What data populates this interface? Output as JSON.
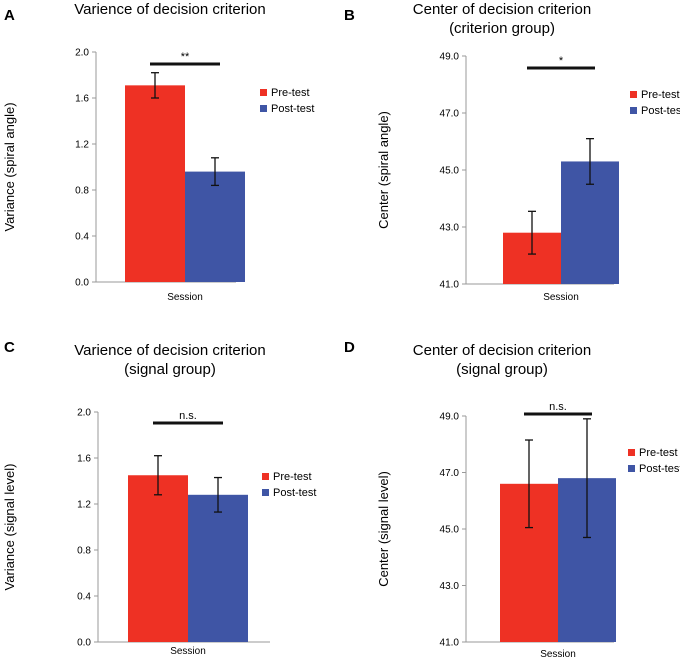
{
  "panels": [
    {
      "id": "a",
      "letter": "A",
      "title_lines": [
        "Varience of decision criterion"
      ],
      "chart_data": {
        "type": "bar",
        "title": "Varience of decision criterion",
        "xlabel": "Session",
        "ylabel": "Variance (spiral angle)",
        "ylim": [
          0,
          2.0
        ],
        "ticks": [
          "0.0",
          "0.4",
          "0.8",
          "1.2",
          "1.6",
          "2.0"
        ],
        "series": [
          {
            "name": "Pre-test",
            "color": "#ee3124",
            "value": 1.71,
            "err": 0.11
          },
          {
            "name": "Post-test",
            "color": "#3f55a5",
            "value": 0.96,
            "err": 0.12
          }
        ],
        "significance": "**"
      }
    },
    {
      "id": "b",
      "letter": "B",
      "title_lines": [
        "Center of decision criterion",
        "(criterion group)"
      ],
      "chart_data": {
        "type": "bar",
        "title": "Center of decision criterion (criterion group)",
        "xlabel": "Session",
        "ylabel": "Center (spiral angle)",
        "ylim": [
          41.0,
          49.0
        ],
        "ticks": [
          "41.0",
          "43.0",
          "45.0",
          "47.0",
          "49.0"
        ],
        "series": [
          {
            "name": "Pre-test",
            "color": "#ee3124",
            "value": 42.8,
            "err": 0.75
          },
          {
            "name": "Post-test",
            "color": "#3f55a5",
            "value": 45.3,
            "err": 0.8
          }
        ],
        "significance": "*"
      }
    },
    {
      "id": "c",
      "letter": "C",
      "title_lines": [
        "Varience of decision criterion",
        "(signal group)"
      ],
      "chart_data": {
        "type": "bar",
        "title": "Varience of decision criterion (signal group)",
        "xlabel": "Session",
        "ylabel": "Variance (signal level)",
        "ylim": [
          0,
          2.0
        ],
        "ticks": [
          "0.0",
          "0.4",
          "0.8",
          "1.2",
          "1.6",
          "2.0"
        ],
        "series": [
          {
            "name": "Pre-test",
            "color": "#ee3124",
            "value": 1.45,
            "err": 0.17
          },
          {
            "name": "Post-test",
            "color": "#3f55a5",
            "value": 1.28,
            "err": 0.15
          }
        ],
        "significance": "n.s."
      }
    },
    {
      "id": "d",
      "letter": "D",
      "title_lines": [
        "Center of decision criterion",
        "(signal group)"
      ],
      "chart_data": {
        "type": "bar",
        "title": "Center of decision criterion (signal group)",
        "xlabel": "Session",
        "ylabel": "Center (signal level)",
        "ylim": [
          41.0,
          49.0
        ],
        "ticks": [
          "41.0",
          "43.0",
          "45.0",
          "47.0",
          "49.0"
        ],
        "series": [
          {
            "name": "Pre-test",
            "color": "#ee3124",
            "value": 46.6,
            "err": 1.55
          },
          {
            "name": "Post-test",
            "color": "#3f55a5",
            "value": 46.8,
            "err": 2.1
          }
        ],
        "significance": "n.s."
      }
    }
  ]
}
